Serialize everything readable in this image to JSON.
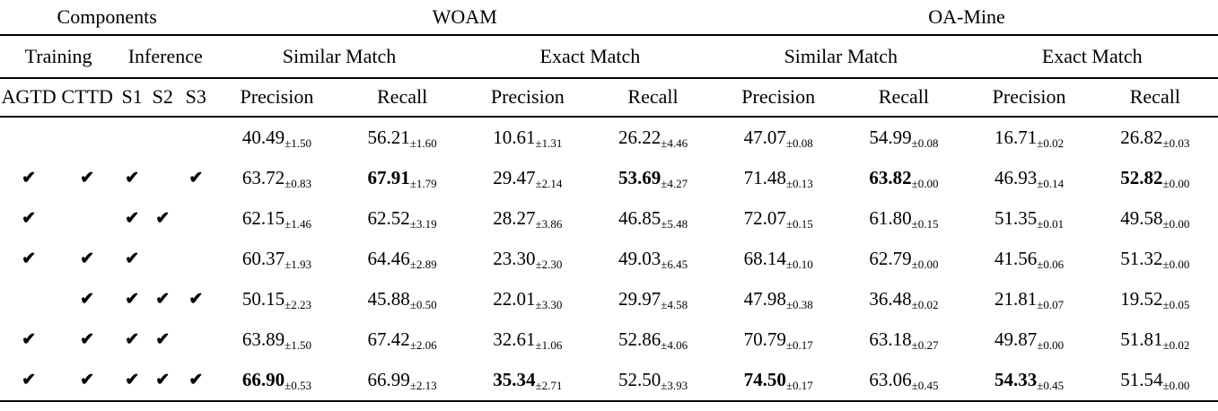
{
  "table": {
    "check_symbol": "✔",
    "sections": [
      {
        "label": "Components",
        "span": 5
      },
      {
        "label": "WOAM",
        "span": 4
      },
      {
        "label": "OA-Mine",
        "span": 4
      }
    ],
    "groups": [
      {
        "label": "Training",
        "span": 2
      },
      {
        "label": "Inference",
        "span": 3
      },
      {
        "label": "Similar Match",
        "span": 2
      },
      {
        "label": "Exact Match",
        "span": 2
      },
      {
        "label": "Similar Match",
        "span": 2
      },
      {
        "label": "Exact Match",
        "span": 2
      }
    ],
    "columns": [
      "AGTD",
      "CTTD",
      "S1",
      "S2",
      "S3",
      "Precision",
      "Recall",
      "Precision",
      "Recall",
      "Precision",
      "Recall",
      "Precision",
      "Recall"
    ],
    "rows": [
      {
        "checks": [
          false,
          false,
          false,
          false,
          false
        ],
        "values": [
          {
            "v": "40.49",
            "s": "±1.50",
            "b": false
          },
          {
            "v": "56.21",
            "s": "±1.60",
            "b": false
          },
          {
            "v": "10.61",
            "s": "±1.31",
            "b": false
          },
          {
            "v": "26.22",
            "s": "±4.46",
            "b": false
          },
          {
            "v": "47.07",
            "s": "±0.08",
            "b": false
          },
          {
            "v": "54.99",
            "s": "±0.08",
            "b": false
          },
          {
            "v": "16.71",
            "s": "±0.02",
            "b": false
          },
          {
            "v": "26.82",
            "s": "±0.03",
            "b": false
          }
        ]
      },
      {
        "checks": [
          true,
          true,
          true,
          false,
          true
        ],
        "values": [
          {
            "v": "63.72",
            "s": "±0.83",
            "b": false
          },
          {
            "v": "67.91",
            "s": "±1.79",
            "b": true
          },
          {
            "v": "29.47",
            "s": "±2.14",
            "b": false
          },
          {
            "v": "53.69",
            "s": "±4.27",
            "b": true
          },
          {
            "v": "71.48",
            "s": "±0.13",
            "b": false
          },
          {
            "v": "63.82",
            "s": "±0.00",
            "b": true
          },
          {
            "v": "46.93",
            "s": "±0.14",
            "b": false
          },
          {
            "v": "52.82",
            "s": "±0.00",
            "b": true
          }
        ]
      },
      {
        "checks": [
          true,
          false,
          true,
          true,
          false
        ],
        "values": [
          {
            "v": "62.15",
            "s": "±1.46",
            "b": false
          },
          {
            "v": "62.52",
            "s": "±3.19",
            "b": false
          },
          {
            "v": "28.27",
            "s": "±3.86",
            "b": false
          },
          {
            "v": "46.85",
            "s": "±5.48",
            "b": false
          },
          {
            "v": "72.07",
            "s": "±0.15",
            "b": false
          },
          {
            "v": "61.80",
            "s": "±0.15",
            "b": false
          },
          {
            "v": "51.35",
            "s": "±0.01",
            "b": false
          },
          {
            "v": "49.58",
            "s": "±0.00",
            "b": false
          }
        ]
      },
      {
        "checks": [
          true,
          true,
          true,
          false,
          false
        ],
        "values": [
          {
            "v": "60.37",
            "s": "±1.93",
            "b": false
          },
          {
            "v": "64.46",
            "s": "±2.89",
            "b": false
          },
          {
            "v": "23.30",
            "s": "±2.30",
            "b": false
          },
          {
            "v": "49.03",
            "s": "±6.45",
            "b": false
          },
          {
            "v": "68.14",
            "s": "±0.10",
            "b": false
          },
          {
            "v": "62.79",
            "s": "±0.00",
            "b": false
          },
          {
            "v": "41.56",
            "s": "±0.06",
            "b": false
          },
          {
            "v": "51.32",
            "s": "±0.00",
            "b": false
          }
        ]
      },
      {
        "checks": [
          false,
          true,
          true,
          true,
          true
        ],
        "values": [
          {
            "v": "50.15",
            "s": "±2.23",
            "b": false
          },
          {
            "v": "45.88",
            "s": "±0.50",
            "b": false
          },
          {
            "v": "22.01",
            "s": "±3.30",
            "b": false
          },
          {
            "v": "29.97",
            "s": "±4.58",
            "b": false
          },
          {
            "v": "47.98",
            "s": "±0.38",
            "b": false
          },
          {
            "v": "36.48",
            "s": "±0.02",
            "b": false
          },
          {
            "v": "21.81",
            "s": "±0.07",
            "b": false
          },
          {
            "v": "19.52",
            "s": "±0.05",
            "b": false
          }
        ]
      },
      {
        "checks": [
          true,
          true,
          true,
          true,
          false
        ],
        "values": [
          {
            "v": "63.89",
            "s": "±1.50",
            "b": false
          },
          {
            "v": "67.42",
            "s": "±2.06",
            "b": false
          },
          {
            "v": "32.61",
            "s": "±1.06",
            "b": false
          },
          {
            "v": "52.86",
            "s": "±4.06",
            "b": false
          },
          {
            "v": "70.79",
            "s": "±0.17",
            "b": false
          },
          {
            "v": "63.18",
            "s": "±0.27",
            "b": false
          },
          {
            "v": "49.87",
            "s": "±0.00",
            "b": false
          },
          {
            "v": "51.81",
            "s": "±0.02",
            "b": false
          }
        ]
      },
      {
        "checks": [
          true,
          true,
          true,
          true,
          true
        ],
        "values": [
          {
            "v": "66.90",
            "s": "±0.53",
            "b": true
          },
          {
            "v": "66.99",
            "s": "±2.13",
            "b": false
          },
          {
            "v": "35.34",
            "s": "±2.71",
            "b": true
          },
          {
            "v": "52.50",
            "s": "±3.93",
            "b": false
          },
          {
            "v": "74.50",
            "s": "±0.17",
            "b": true
          },
          {
            "v": "63.06",
            "s": "±0.45",
            "b": false
          },
          {
            "v": "54.33",
            "s": "±0.45",
            "b": true
          },
          {
            "v": "51.54",
            "s": "±0.00",
            "b": false
          }
        ]
      }
    ]
  }
}
